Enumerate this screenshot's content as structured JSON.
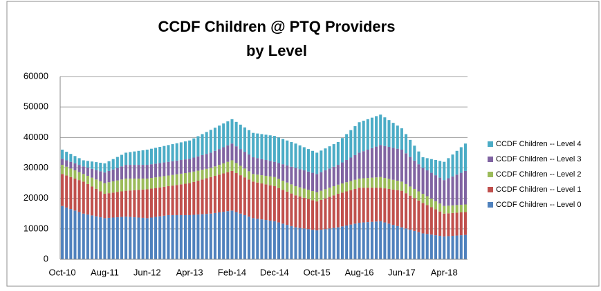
{
  "chart_data": {
    "type": "stacked_bar",
    "title": "CCDF Children @ PTQ Providers",
    "subtitle": "by Level",
    "categories": [
      "Oct-10",
      null,
      null,
      null,
      null,
      null,
      null,
      null,
      null,
      null,
      "Aug-11",
      null,
      null,
      null,
      null,
      null,
      null,
      null,
      null,
      null,
      "Jun-12",
      null,
      null,
      null,
      null,
      null,
      null,
      null,
      null,
      null,
      "Apr-13",
      null,
      null,
      null,
      null,
      null,
      null,
      null,
      null,
      null,
      "Feb-14",
      null,
      null,
      null,
      null,
      null,
      null,
      null,
      null,
      null,
      "Dec-14",
      null,
      null,
      null,
      null,
      null,
      null,
      null,
      null,
      null,
      "Oct-15",
      null,
      null,
      null,
      null,
      null,
      null,
      null,
      null,
      null,
      "Aug-16",
      null,
      null,
      null,
      null,
      null,
      null,
      null,
      null,
      null,
      "Jun-17",
      null,
      null,
      null,
      null,
      null,
      null,
      null,
      null,
      null,
      "Apr-18",
      null,
      null,
      null,
      null,
      null
    ],
    "series": [
      {
        "name": "CCDF Children -- Level 0",
        "color": "#4f81bd",
        "values": [
          17500,
          17000,
          16500,
          16000,
          15500,
          15000,
          14700,
          14400,
          14100,
          13800,
          13500,
          13600,
          13700,
          13800,
          13900,
          14000,
          13900,
          13800,
          13700,
          13600,
          13500,
          13700,
          13900,
          14100,
          14300,
          14500,
          14500,
          14500,
          14500,
          14500,
          14500,
          14600,
          14700,
          14800,
          14900,
          15000,
          15200,
          15400,
          15600,
          15800,
          16000,
          15500,
          15000,
          14500,
          14000,
          13500,
          13300,
          13100,
          12900,
          12700,
          12500,
          12100,
          11700,
          11300,
          10900,
          10500,
          10300,
          10100,
          9900,
          9700,
          9500,
          9700,
          9900,
          10100,
          10300,
          10500,
          10800,
          11100,
          11400,
          11700,
          12000,
          12100,
          12200,
          12300,
          12400,
          12500,
          12100,
          11700,
          11300,
          10900,
          10500,
          10100,
          9700,
          9300,
          8900,
          8500,
          8300,
          8100,
          7900,
          7700,
          7500,
          7600,
          7700,
          7800,
          7900,
          8000
        ]
      },
      {
        "name": "CCDF Children -- Level 1",
        "color": "#c0504d",
        "values": [
          10500,
          10500,
          10500,
          10500,
          10500,
          10500,
          10000,
          9500,
          9000,
          8500,
          8000,
          8100,
          8200,
          8300,
          8400,
          8500,
          8700,
          8900,
          9100,
          9300,
          9500,
          9500,
          9500,
          9500,
          9500,
          9500,
          9700,
          9900,
          10100,
          10300,
          10500,
          10800,
          11100,
          11400,
          11700,
          12000,
          12200,
          12400,
          12600,
          12800,
          13000,
          12800,
          12600,
          12400,
          12200,
          12000,
          11900,
          11800,
          11700,
          11600,
          11500,
          11300,
          11100,
          10900,
          10700,
          10500,
          10300,
          10100,
          9900,
          9700,
          9500,
          9800,
          10100,
          10400,
          10700,
          11000,
          11100,
          11200,
          11300,
          11400,
          11500,
          11400,
          11300,
          11200,
          11100,
          11000,
          11200,
          11400,
          11600,
          11800,
          12000,
          11600,
          11200,
          10800,
          10400,
          10000,
          9500,
          9000,
          8500,
          8000,
          7500,
          7500,
          7500,
          7500,
          7500,
          7500
        ]
      },
      {
        "name": "CCDF Children -- Level 2",
        "color": "#9bbb59",
        "values": [
          3000,
          2900,
          2800,
          2700,
          2600,
          2500,
          2700,
          2900,
          3100,
          3300,
          3500,
          3600,
          3700,
          3800,
          3900,
          4000,
          3900,
          3800,
          3700,
          3600,
          3500,
          3500,
          3500,
          3500,
          3500,
          3500,
          3500,
          3500,
          3500,
          3500,
          3500,
          3400,
          3300,
          3200,
          3100,
          3000,
          3100,
          3200,
          3300,
          3400,
          3500,
          3300,
          3100,
          2900,
          2700,
          2500,
          2600,
          2700,
          2800,
          2900,
          3000,
          3000,
          3000,
          3000,
          3000,
          3000,
          3000,
          3000,
          3000,
          3000,
          3000,
          3000,
          3000,
          3000,
          3000,
          3000,
          3000,
          3000,
          3000,
          3000,
          3000,
          3100,
          3200,
          3300,
          3400,
          3500,
          3400,
          3300,
          3200,
          3100,
          3000,
          3000,
          3000,
          3000,
          3000,
          3000,
          2900,
          2800,
          2700,
          2600,
          2500,
          2500,
          2500,
          2500,
          2500,
          2500
        ]
      },
      {
        "name": "CCDF Children -- Level 3",
        "color": "#8064a2",
        "values": [
          2000,
          2100,
          2200,
          2300,
          2400,
          2500,
          2700,
          2900,
          3100,
          3300,
          3500,
          3700,
          3900,
          4100,
          4300,
          4500,
          4500,
          4500,
          4500,
          4500,
          4500,
          4500,
          4500,
          4500,
          4500,
          4500,
          4500,
          4500,
          4500,
          4500,
          4500,
          4600,
          4700,
          4800,
          4900,
          5000,
          5100,
          5200,
          5300,
          5400,
          5500,
          5500,
          5500,
          5500,
          5500,
          5500,
          5400,
          5300,
          5200,
          5100,
          5000,
          5200,
          5400,
          5600,
          5800,
          6000,
          6000,
          6000,
          6000,
          6000,
          6000,
          6100,
          6200,
          6300,
          6400,
          6500,
          6900,
          7300,
          7700,
          8100,
          8500,
          8900,
          9300,
          9700,
          10100,
          10500,
          10500,
          10500,
          10500,
          10500,
          10500,
          10100,
          9700,
          9300,
          8900,
          8500,
          8500,
          8500,
          8500,
          8500,
          8500,
          9000,
          9500,
          10000,
          10500,
          11000
        ]
      },
      {
        "name": "CCDF Children -- Level 4",
        "color": "#4bacc6",
        "values": [
          3000,
          2800,
          2600,
          2400,
          2200,
          2000,
          2200,
          2400,
          2600,
          2800,
          3000,
          3200,
          3400,
          3600,
          3800,
          4000,
          4200,
          4400,
          4600,
          4800,
          5000,
          5100,
          5200,
          5300,
          5400,
          5500,
          5600,
          5700,
          5800,
          5900,
          6000,
          6300,
          6600,
          6900,
          7200,
          7500,
          7600,
          7700,
          7800,
          7900,
          8000,
          8000,
          8000,
          8000,
          8000,
          8000,
          8100,
          8200,
          8300,
          8400,
          8500,
          8400,
          8300,
          8200,
          8100,
          8000,
          7800,
          7600,
          7400,
          7200,
          7000,
          7100,
          7200,
          7300,
          7400,
          7500,
          8000,
          8500,
          9000,
          9500,
          10000,
          10000,
          10000,
          10000,
          10000,
          10000,
          9400,
          8800,
          8200,
          7600,
          7000,
          6300,
          5600,
          4900,
          4200,
          3500,
          4000,
          4500,
          5000,
          5500,
          6000,
          6600,
          7200,
          7800,
          8400,
          9000
        ]
      }
    ],
    "ylim": [
      0,
      60000
    ],
    "yticks": [
      0,
      10000,
      20000,
      30000,
      40000,
      50000,
      60000
    ],
    "grid": true,
    "legend": "right"
  }
}
